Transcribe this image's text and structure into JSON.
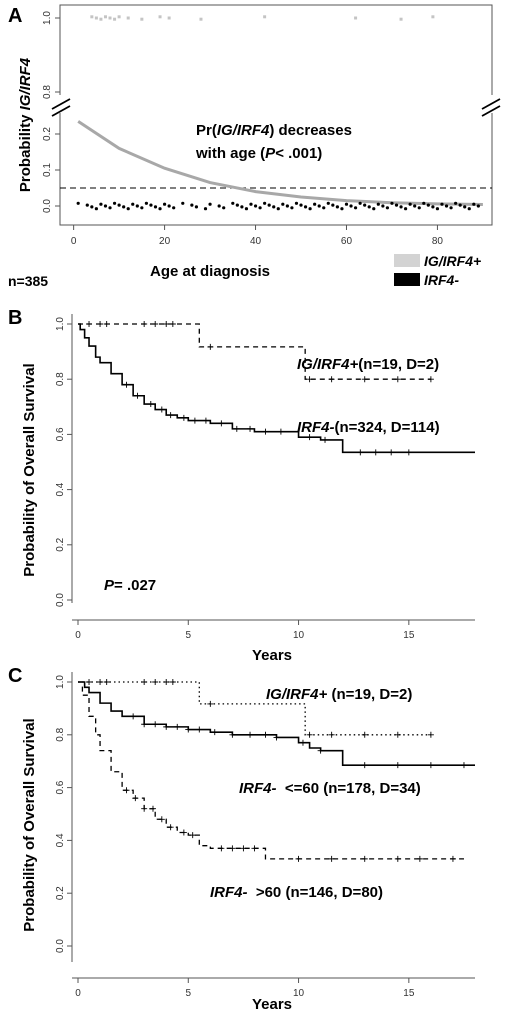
{
  "chart_data": [
    {
      "panel": "A",
      "type": "scatter",
      "ylabel_pre": "Probability ",
      "ylabel_italic": "IG/IRF4",
      "xlabel": "Age at diagnosis",
      "annotation_line1_pre": "Pr(",
      "annotation_line1_italic": "IG/IRF4",
      "annotation_line1_post": ") decreases",
      "annotation_line2_pre": "with age (",
      "annotation_line2_italic": "P",
      "annotation_line2_post": "< .001)",
      "n_label": "n=385",
      "legend": [
        {
          "label": "IG/IRF4+",
          "color": "#d3d3d3"
        },
        {
          "label": "IRF4-",
          "color": "#000000"
        }
      ],
      "xlim": [
        -3,
        92
      ],
      "xticks": [
        "0",
        "20",
        "40",
        "60",
        "80"
      ],
      "yticks_upper": [
        "0.8",
        "1.0"
      ],
      "yticks_lower": [
        "0.0",
        "0.1",
        "0.2"
      ],
      "threshold": 0.05,
      "curve": {
        "age": [
          1,
          10,
          20,
          30,
          40,
          50,
          60,
          70,
          80,
          90
        ],
        "prob": [
          0.235,
          0.16,
          0.105,
          0.065,
          0.04,
          0.025,
          0.015,
          0.009,
          0.006,
          0.004
        ]
      },
      "positive_ages": [
        4,
        5,
        6,
        7,
        8,
        9,
        10,
        12,
        15,
        19,
        21,
        28,
        42,
        62,
        72,
        79
      ],
      "negative_ages": [
        1,
        3,
        4,
        5,
        6,
        7,
        8,
        9,
        10,
        11,
        12,
        13,
        14,
        15,
        16,
        17,
        18,
        19,
        20,
        21,
        22,
        24,
        26,
        27,
        29,
        30,
        32,
        33,
        35,
        36,
        37,
        38,
        39,
        40,
        41,
        42,
        43,
        44,
        45,
        46,
        47,
        48,
        49,
        50,
        51,
        52,
        53,
        54,
        55,
        56,
        57,
        58,
        59,
        60,
        61,
        62,
        63,
        64,
        65,
        66,
        67,
        68,
        69,
        70,
        71,
        72,
        73,
        74,
        75,
        76,
        77,
        78,
        79,
        80,
        81,
        82,
        83,
        84,
        85,
        86,
        87,
        88,
        89
      ]
    },
    {
      "panel": "B",
      "type": "line",
      "ylabel": "Probability of Overall Survival",
      "xlabel": "Years",
      "xlim": [
        0,
        18
      ],
      "ylim": [
        0,
        1
      ],
      "xticks": [
        "0",
        "5",
        "10",
        "15"
      ],
      "yticks": [
        "0.0",
        "0.2",
        "0.4",
        "0.6",
        "0.8",
        "1.0"
      ],
      "p_label_italic": "P",
      "p_label_post": "= .027",
      "series": [
        {
          "name_italic": "IG/IRF4+",
          "name_post": "(n=19, D=2)",
          "style": "dashed",
          "x": [
            0,
            5.5,
            5.5,
            10.3,
            10.3,
            16
          ],
          "y": [
            1.0,
            1.0,
            0.917,
            0.917,
            0.8,
            0.8
          ],
          "censor": [
            0.5,
            1.0,
            1.3,
            3.0,
            3.5,
            4.0,
            4.3,
            6.0,
            10.5,
            11.5,
            13.0,
            14.5,
            16.0
          ]
        },
        {
          "name_italic": "IRF4-",
          "name_post": "(n=324, D=114)",
          "style": "solid",
          "x": [
            0,
            0.1,
            0.3,
            0.5,
            0.8,
            1.0,
            1.5,
            2.0,
            2.5,
            3.0,
            3.5,
            4.0,
            4.5,
            5.0,
            6.0,
            7.0,
            8.0,
            9.0,
            10.0,
            11.0,
            12.0,
            12.0,
            18.0
          ],
          "y": [
            1.0,
            0.98,
            0.95,
            0.92,
            0.88,
            0.86,
            0.82,
            0.78,
            0.74,
            0.71,
            0.69,
            0.67,
            0.66,
            0.65,
            0.64,
            0.62,
            0.61,
            0.61,
            0.59,
            0.58,
            0.58,
            0.535,
            0.535
          ],
          "censor": [
            2.2,
            2.7,
            3.3,
            3.8,
            4.2,
            4.8,
            5.3,
            5.8,
            6.5,
            7.2,
            7.8,
            8.5,
            9.2,
            10.5,
            11.2,
            12.8,
            13.5,
            14.2,
            15.0
          ]
        }
      ]
    },
    {
      "panel": "C",
      "type": "line",
      "ylabel": "Probability of Overall Survival",
      "xlabel": "Years",
      "xlim": [
        0,
        18
      ],
      "ylim": [
        0,
        1
      ],
      "xticks": [
        "0",
        "5",
        "10",
        "15"
      ],
      "yticks": [
        "0.0",
        "0.2",
        "0.4",
        "0.6",
        "0.8",
        "1.0"
      ],
      "series": [
        {
          "name_italic": "IG/IRF4+",
          "name_post": " (n=19, D=2)",
          "style": "dotted",
          "x": [
            0,
            5.5,
            5.5,
            10.3,
            10.3,
            16
          ],
          "y": [
            1.0,
            1.0,
            0.917,
            0.917,
            0.8,
            0.8
          ],
          "censor": [
            0.5,
            1.0,
            1.3,
            3.0,
            3.5,
            4.0,
            4.3,
            6.0,
            10.5,
            11.5,
            13.0,
            14.5,
            16.0
          ]
        },
        {
          "name_italic": "IRF4-",
          "name_post": "  <=60 (n=178, D=34)",
          "style": "solid",
          "x": [
            0,
            0.3,
            0.5,
            1.0,
            1.5,
            2.0,
            3.0,
            4.0,
            5.0,
            6.0,
            7.0,
            8.0,
            9.0,
            10.0,
            10.5,
            11.0,
            12.0,
            12.0,
            18.0
          ],
          "y": [
            1.0,
            0.98,
            0.96,
            0.92,
            0.89,
            0.87,
            0.84,
            0.83,
            0.82,
            0.81,
            0.8,
            0.8,
            0.79,
            0.77,
            0.75,
            0.74,
            0.74,
            0.685,
            0.685
          ],
          "censor": [
            2.5,
            3.0,
            3.5,
            4.0,
            4.5,
            5.0,
            5.5,
            6.2,
            7.0,
            7.8,
            8.5,
            9.0,
            10.2,
            11.0,
            13.0,
            14.5,
            16.0,
            17.5
          ]
        },
        {
          "name_italic": "IRF4-",
          "name_post": "  >60 (n=146, D=80)",
          "style": "dashed",
          "x": [
            0,
            0.2,
            0.5,
            0.8,
            1.0,
            1.5,
            2.0,
            2.5,
            3.0,
            3.5,
            4.0,
            4.5,
            5.0,
            5.5,
            6.0,
            8.5,
            8.5,
            17.5
          ],
          "y": [
            1.0,
            0.95,
            0.87,
            0.8,
            0.74,
            0.66,
            0.59,
            0.56,
            0.52,
            0.48,
            0.45,
            0.43,
            0.42,
            0.38,
            0.37,
            0.36,
            0.33,
            0.33
          ],
          "censor": [
            2.2,
            2.6,
            3.0,
            3.4,
            3.8,
            4.2,
            4.8,
            5.2,
            6.5,
            7.0,
            7.5,
            8.0,
            10.0,
            11.5,
            13.0,
            14.5,
            15.5,
            17.0
          ]
        }
      ]
    }
  ],
  "colors": {
    "positive": "#c4c4c4",
    "negative": "#000000",
    "curve": "#a8a8a8"
  }
}
